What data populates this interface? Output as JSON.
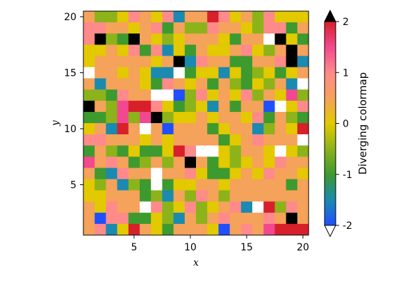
{
  "chart_data": {
    "type": "heatmap",
    "xlabel": "x",
    "ylabel": "y",
    "colorbar_label": "Diverging colormap",
    "x_range": [
      1,
      20
    ],
    "y_range": [
      1,
      20
    ],
    "x_ticks": [
      5,
      10,
      15,
      20
    ],
    "y_ticks": [
      5,
      10,
      15,
      20
    ],
    "colorbar_ticks": [
      {
        "value": -2,
        "label": "-2"
      },
      {
        "value": -1,
        "label": "-1"
      },
      {
        "value": 0,
        "label": "0"
      },
      {
        "value": 1,
        "label": "1"
      },
      {
        "value": 2,
        "label": "2"
      }
    ],
    "colorrange": [
      -2,
      2
    ],
    "colorbar_extends": {
      "high": "#000000",
      "low": "#ffffff"
    },
    "colormap": [
      {
        "value": -2.0,
        "color": "#1f4fff"
      },
      {
        "value": -1.5,
        "color": "#1a8ab0"
      },
      {
        "value": -1.0,
        "color": "#3d9a2f"
      },
      {
        "value": -0.5,
        "color": "#8cb31a"
      },
      {
        "value": 0.0,
        "color": "#e3c900"
      },
      {
        "value": 0.5,
        "color": "#f5a25a"
      },
      {
        "value": 1.0,
        "color": "#ff8a8a"
      },
      {
        "value": 1.5,
        "color": "#f2488f"
      },
      {
        "value": 2.0,
        "color": "#d7202a"
      }
    ],
    "grid": false,
    "rows_top_to_bottom_y20_to_y1": [
      [
        0.5,
        -0.5,
        -0.5,
        0,
        1,
        0.5,
        0,
        1,
        -1.5,
        0.5,
        0.5,
        2,
        1,
        0,
        0.5,
        -0.5,
        1,
        0,
        0,
        0
      ],
      [
        1,
        1,
        0.5,
        0.5,
        0,
        0.5,
        1,
        -1,
        0.5,
        -0.5,
        -0.5,
        1,
        0.5,
        0.5,
        0,
        -0.5,
        1,
        1,
        -1,
        0.5
      ],
      [
        1,
        3,
        -0.5,
        -1,
        3,
        0.5,
        0,
        -0.5,
        0,
        0.5,
        0.5,
        0.5,
        0,
        -1,
        0.5,
        0.5,
        -3,
        3,
        0,
        -1
      ],
      [
        0,
        0,
        0.5,
        0,
        1,
        -1,
        1,
        -1.5,
        0,
        -1,
        0.5,
        0,
        0,
        0.5,
        1,
        0,
        -0.5,
        0.5,
        3,
        0.5
      ],
      [
        0,
        0.5,
        0.5,
        0.5,
        0.5,
        0.5,
        0,
        0.5,
        3,
        -1.5,
        1,
        0.5,
        0.5,
        -1,
        -1,
        0.5,
        0.5,
        1,
        3,
        -1.5
      ],
      [
        -3,
        0.5,
        0.5,
        0,
        0.5,
        0,
        -1.5,
        -1.5,
        -3,
        -1,
        0,
        0,
        -1.5,
        0,
        -1,
        -0.5,
        0,
        -1,
        0,
        0.5
      ],
      [
        0.5,
        -1.5,
        0.5,
        0.5,
        0.5,
        0,
        -1,
        1,
        0.5,
        0,
        0.5,
        -1,
        0.5,
        -0.5,
        -1,
        0,
        -0.5,
        0.5,
        -1.5,
        -3
      ],
      [
        -0.5,
        -0.5,
        -1,
        1,
        0.5,
        0.5,
        -3,
        -3,
        -2,
        -0.5,
        1,
        0,
        0.5,
        0,
        1,
        -0.5,
        0.5,
        0,
        1.5,
        -0.5
      ],
      [
        3,
        0.5,
        -0.5,
        1.5,
        2,
        2,
        1,
        0,
        -1,
        -0.5,
        0,
        -1.5,
        0.5,
        -1,
        0.5,
        0.5,
        -2,
        -3,
        0,
        1
      ],
      [
        -1,
        -1,
        -0.5,
        1.5,
        -0.5,
        1.5,
        3,
        -0.5,
        0,
        0,
        0.5,
        0,
        0.5,
        0.5,
        0,
        1,
        -1,
        0.5,
        -0.5,
        -1
      ],
      [
        0,
        0.5,
        -1.5,
        2,
        0.5,
        -3,
        0.5,
        -2,
        0.5,
        0.5,
        0.5,
        -1,
        0,
        0.5,
        0.5,
        -1.5,
        -0.5,
        0.5,
        0,
        2
      ],
      [
        1,
        1,
        0.5,
        0.5,
        0.5,
        0,
        0.5,
        0,
        0.5,
        0.5,
        0.5,
        0.5,
        -1,
        0,
        0.5,
        1,
        0.5,
        0.5,
        0.5,
        -3
      ],
      [
        -1,
        0.5,
        -0.5,
        -1,
        0,
        -1,
        -1,
        0,
        2,
        1,
        -3,
        -3,
        0,
        -0.5,
        0.5,
        0.5,
        0,
        -3,
        0,
        -0.5
      ],
      [
        1.5,
        0.5,
        1,
        0.5,
        -1,
        -0.5,
        0.5,
        -0.5,
        0.5,
        3,
        0.5,
        -1,
        0,
        -0.5,
        0,
        0.5,
        0,
        1,
        0.5,
        0.5
      ],
      [
        0.5,
        -1,
        -1.5,
        1,
        0.5,
        0.5,
        -3,
        0.5,
        0.5,
        1,
        0,
        -1,
        -1,
        0,
        0.5,
        0,
        1,
        0.5,
        0.5,
        0
      ],
      [
        0,
        -0.5,
        0.5,
        -1.5,
        -0.5,
        -1,
        -3,
        -1,
        0,
        0,
        0.5,
        0.5,
        0,
        0.5,
        0.5,
        0.5,
        0.5,
        0.5,
        -1,
        0.5
      ],
      [
        0,
        0,
        0.5,
        0.5,
        0.5,
        -1,
        -0.5,
        -1.5,
        0.5,
        -0.5,
        1,
        0.5,
        -0.5,
        0.5,
        0.5,
        0.5,
        0.5,
        0.5,
        0.5,
        0.5
      ],
      [
        0.5,
        0,
        1,
        0.5,
        0.5,
        -3,
        1,
        -0.5,
        0,
        1,
        -0.5,
        0,
        0.5,
        1,
        -1.5,
        -3,
        2,
        -0.5,
        1,
        0.5
      ],
      [
        0.5,
        -2,
        1,
        1,
        -1,
        -1,
        0,
        -0.5,
        -1.5,
        0.5,
        -0.5,
        0.5,
        1,
        0.5,
        0.5,
        0.5,
        1,
        0.5,
        3,
        0.5
      ],
      [
        0.5,
        1,
        -1.5,
        0,
        2,
        0.5,
        0,
        -1,
        0.5,
        0.5,
        0.5,
        0,
        -2,
        0.5,
        1,
        0.5,
        1.5,
        2,
        2,
        2
      ]
    ]
  }
}
